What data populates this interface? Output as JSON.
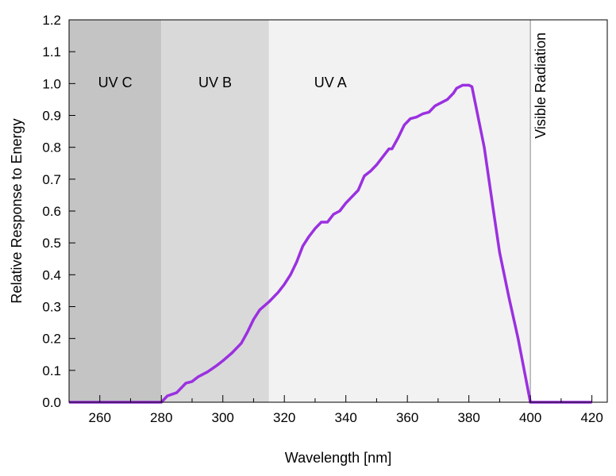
{
  "chart_data": {
    "type": "line",
    "title": "",
    "xlabel": "Wavelength [nm]",
    "ylabel": "Relative Response to Energy",
    "xlim": [
      250,
      425
    ],
    "ylim": [
      0,
      1.2
    ],
    "xticks": [
      260,
      280,
      300,
      320,
      340,
      360,
      380,
      400,
      420
    ],
    "yticks": [
      "0.0",
      "0.1",
      "0.2",
      "0.3",
      "0.4",
      "0.5",
      "0.6",
      "0.7",
      "0.8",
      "0.9",
      "1.0",
      "1.1",
      "1.2"
    ],
    "grid": false,
    "regions": [
      {
        "label": "UV C",
        "from": 250,
        "to": 280,
        "color": "#c4c4c4"
      },
      {
        "label": "UV B",
        "from": 280,
        "to": 315,
        "color": "#d9d9d9"
      },
      {
        "label": "UV A",
        "from": 315,
        "to": 400,
        "color": "#f2f2f2"
      },
      {
        "label": "Visible Radiation",
        "from": 400,
        "to": 425,
        "color": "#ffffff"
      }
    ],
    "series": [
      {
        "color": "#9b30e0",
        "x": [
          250,
          280,
          282,
          285,
          288,
          290,
          292,
          295,
          298,
          300,
          303,
          306,
          308,
          310,
          312,
          315,
          318,
          320,
          322,
          324,
          326,
          328,
          330,
          332,
          334,
          336,
          338,
          340,
          342,
          344,
          346,
          348,
          350,
          352,
          354,
          355,
          357,
          359,
          361,
          363,
          365,
          367,
          369,
          371,
          373,
          375,
          376,
          378,
          380,
          381,
          385,
          388,
          390,
          393,
          396,
          398,
          400,
          420
        ],
        "y": [
          0,
          0,
          0.02,
          0.03,
          0.06,
          0.065,
          0.08,
          0.095,
          0.115,
          0.13,
          0.155,
          0.185,
          0.22,
          0.26,
          0.29,
          0.315,
          0.345,
          0.37,
          0.4,
          0.44,
          0.49,
          0.52,
          0.545,
          0.565,
          0.565,
          0.59,
          0.6,
          0.625,
          0.645,
          0.665,
          0.71,
          0.725,
          0.745,
          0.77,
          0.795,
          0.795,
          0.83,
          0.87,
          0.89,
          0.895,
          0.905,
          0.91,
          0.93,
          0.94,
          0.95,
          0.97,
          0.985,
          0.995,
          0.995,
          0.99,
          0.8,
          0.6,
          0.47,
          0.33,
          0.2,
          0.1,
          0,
          0
        ]
      }
    ]
  }
}
